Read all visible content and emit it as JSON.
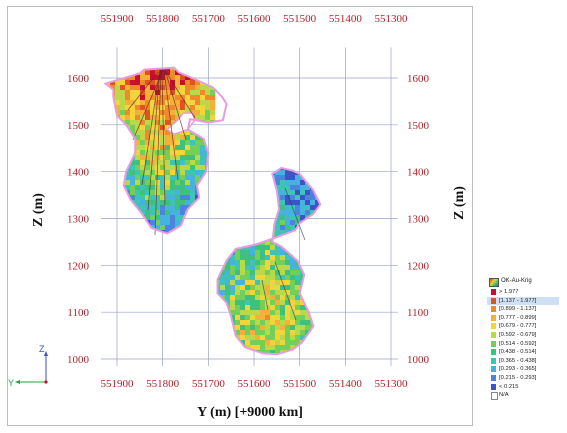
{
  "chart_data": {
    "type": "heatmap",
    "xlabel": "Y (m) [+9000 km]",
    "ylabel_left": "Z (m)",
    "ylabel_right": "Z (m)",
    "x_ticks": [
      "551900",
      "551800",
      "551700",
      "551600",
      "551500",
      "551400",
      "551300"
    ],
    "x_tick_values": [
      551900,
      551800,
      551700,
      551600,
      551500,
      551400,
      551300
    ],
    "y_ticks": [
      "1600",
      "1500",
      "1400",
      "1300",
      "1200",
      "1100",
      "1000"
    ],
    "y_tick_values": [
      1600,
      1500,
      1400,
      1300,
      1200,
      1100,
      1000
    ],
    "xlim": [
      551935,
      551285
    ],
    "ylim": [
      985,
      1665
    ],
    "grid": true,
    "legend_position": "bottom-right",
    "bodies": [
      {
        "name_hidden": true,
        "outline": [
          [
            551908,
            1575
          ],
          [
            551925,
            1588
          ],
          [
            551850,
            1610
          ],
          [
            551840,
            1618
          ],
          [
            551775,
            1622
          ],
          [
            551765,
            1612
          ],
          [
            551735,
            1600
          ],
          [
            551690,
            1580
          ],
          [
            551670,
            1560
          ],
          [
            551660,
            1545
          ],
          [
            551668,
            1510
          ],
          [
            551700,
            1505
          ],
          [
            551740,
            1512
          ],
          [
            551745,
            1490
          ],
          [
            551710,
            1470
          ],
          [
            551700,
            1440
          ],
          [
            551705,
            1400
          ],
          [
            551725,
            1370
          ],
          [
            551720,
            1345
          ],
          [
            551745,
            1320
          ],
          [
            551760,
            1285
          ],
          [
            551790,
            1268
          ],
          [
            551825,
            1280
          ],
          [
            551845,
            1310
          ],
          [
            551870,
            1340
          ],
          [
            551885,
            1370
          ],
          [
            551880,
            1400
          ],
          [
            551860,
            1440
          ],
          [
            551860,
            1470
          ],
          [
            551880,
            1500
          ],
          [
            551900,
            1520
          ],
          [
            551908,
            1560
          ]
        ]
      },
      {
        "name_hidden": true,
        "outline": [
          [
            551560,
            1395
          ],
          [
            551540,
            1408
          ],
          [
            551515,
            1402
          ],
          [
            551500,
            1395
          ],
          [
            551470,
            1360
          ],
          [
            551455,
            1330
          ],
          [
            551470,
            1310
          ],
          [
            551500,
            1290
          ],
          [
            551510,
            1275
          ],
          [
            551550,
            1260
          ],
          [
            551595,
            1245
          ],
          [
            551640,
            1235
          ],
          [
            551660,
            1210
          ],
          [
            551680,
            1170
          ],
          [
            551680,
            1140
          ],
          [
            551660,
            1120
          ],
          [
            551650,
            1090
          ],
          [
            551640,
            1050
          ],
          [
            551620,
            1025
          ],
          [
            551580,
            1012
          ],
          [
            551550,
            1010
          ],
          [
            551515,
            1020
          ],
          [
            551495,
            1035
          ],
          [
            551470,
            1070
          ],
          [
            551480,
            1100
          ],
          [
            551500,
            1140
          ],
          [
            551490,
            1180
          ],
          [
            551505,
            1210
          ],
          [
            551540,
            1240
          ],
          [
            551560,
            1250
          ],
          [
            551555,
            1290
          ],
          [
            551545,
            1320
          ],
          [
            551550,
            1360
          ],
          [
            551560,
            1395
          ]
        ]
      }
    ],
    "hole": [
      [
        551790,
        1490
      ],
      [
        551765,
        1512
      ],
      [
        551755,
        1525
      ],
      [
        551735,
        1525
      ],
      [
        551730,
        1510
      ],
      [
        551745,
        1490
      ],
      [
        551775,
        1480
      ]
    ]
  },
  "legend": {
    "title": "OK-Au-Krig",
    "items": [
      {
        "label": "> 1.977",
        "color": "#c8102e",
        "highlighted": false
      },
      {
        "label": "[1.137 - 1.977]",
        "color": "#e0531f",
        "highlighted": true
      },
      {
        "label": "[0.899 - 1.137]",
        "color": "#ef8a2c",
        "highlighted": false
      },
      {
        "label": "[0.777 - 0.899]",
        "color": "#f4b13a",
        "highlighted": false
      },
      {
        "label": "[0.679 - 0.777]",
        "color": "#f2d43b",
        "highlighted": false
      },
      {
        "label": "[0.592 - 0.679]",
        "color": "#b9d94a",
        "highlighted": false
      },
      {
        "label": "[0.514 - 0.592]",
        "color": "#72cf5a",
        "highlighted": false
      },
      {
        "label": "[0.438 - 0.514]",
        "color": "#3fc07c",
        "highlighted": false
      },
      {
        "label": "[0.365 - 0.438]",
        "color": "#3cc4b4",
        "highlighted": false
      },
      {
        "label": "[0.293 - 0.365]",
        "color": "#47b2e0",
        "highlighted": false
      },
      {
        "label": "[0.215 - 0.293]",
        "color": "#4b84dc",
        "highlighted": false
      },
      {
        "label": "< 0.215",
        "color": "#3b55c8",
        "highlighted": false
      },
      {
        "label": "N/A",
        "color": "#ffffff",
        "highlighted": false
      }
    ]
  },
  "triad": {
    "z_label": "Z",
    "y_label": "Y"
  },
  "colors": {
    "axis_text": "#b3202a",
    "grid": "#9aa0c8",
    "outline": "#e79be0",
    "frame": "#bdbdbd"
  }
}
